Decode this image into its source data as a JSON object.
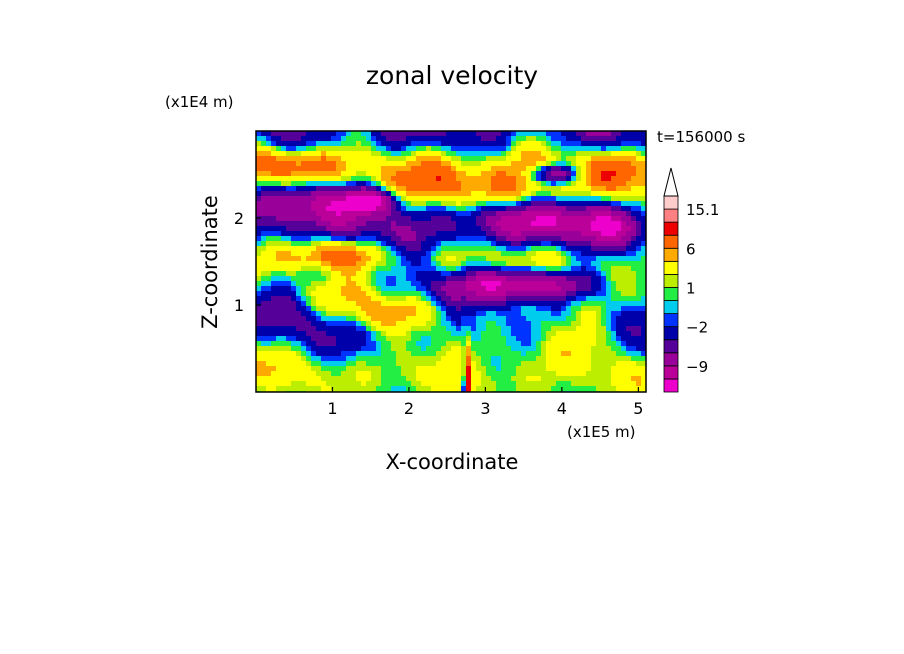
{
  "chart_data": {
    "type": "heatmap",
    "title": "zonal velocity",
    "xlabel": "X-coordinate",
    "ylabel": "Z-coordinate",
    "x_unit": "(x1E5 m)",
    "y_unit": "(x1E4 m)",
    "time_label": "t=156000 s",
    "xlim": [
      0,
      5.1
    ],
    "ylim": [
      0,
      3.0
    ],
    "x_ticks": [
      1,
      2,
      3,
      4,
      5
    ],
    "y_ticks": [
      1,
      2
    ],
    "colorbar": {
      "levels": [
        -15.1,
        -12,
        -9,
        -6,
        -4,
        -2,
        -1,
        0,
        1,
        2,
        4,
        6,
        9,
        12,
        15.1
      ],
      "colors": [
        "#ee00cc",
        "#bb0099",
        "#990099",
        "#550099",
        "#0000aa",
        "#0033ff",
        "#00ccee",
        "#22ee44",
        "#bbee00",
        "#ffff00",
        "#ffaa00",
        "#ff6600",
        "#ee0000",
        "#ff8080",
        "#ffcccc"
      ],
      "labels": [
        {
          "text": "15.1",
          "level": 15.1
        },
        {
          "text": "6",
          "level": 6
        },
        {
          "text": "1",
          "level": 1
        },
        {
          "text": "−2",
          "level": -2
        },
        {
          "text": "−9",
          "level": -9
        }
      ],
      "extend": "max"
    }
  }
}
